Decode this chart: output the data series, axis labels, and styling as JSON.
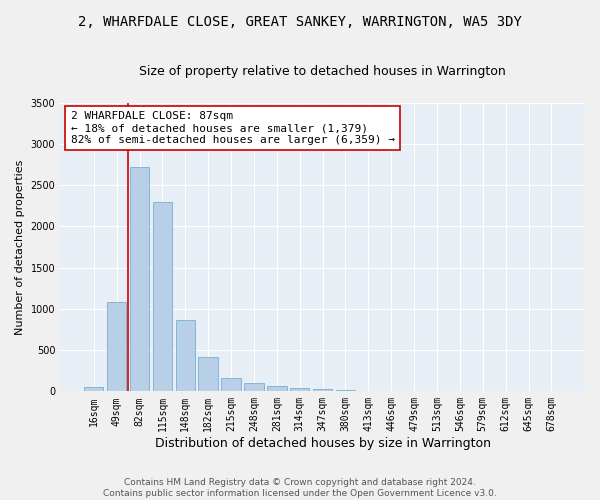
{
  "title": "2, WHARFDALE CLOSE, GREAT SANKEY, WARRINGTON, WA5 3DY",
  "subtitle": "Size of property relative to detached houses in Warrington",
  "xlabel": "Distribution of detached houses by size in Warrington",
  "ylabel": "Number of detached properties",
  "categories": [
    "16sqm",
    "49sqm",
    "82sqm",
    "115sqm",
    "148sqm",
    "182sqm",
    "215sqm",
    "248sqm",
    "281sqm",
    "314sqm",
    "347sqm",
    "380sqm",
    "413sqm",
    "446sqm",
    "479sqm",
    "513sqm",
    "546sqm",
    "579sqm",
    "612sqm",
    "645sqm",
    "678sqm"
  ],
  "values": [
    50,
    1080,
    2720,
    2300,
    870,
    420,
    165,
    100,
    65,
    45,
    30,
    20,
    10,
    5,
    0,
    0,
    0,
    0,
    0,
    0,
    0
  ],
  "bar_color": "#b8cfe8",
  "bar_edge_color": "#7aadd4",
  "vline_color": "#cc0000",
  "vline_index": 2,
  "annotation_text": "2 WHARFDALE CLOSE: 87sqm\n← 18% of detached houses are smaller (1,379)\n82% of semi-detached houses are larger (6,359) →",
  "annotation_box_facecolor": "#ffffff",
  "annotation_box_edgecolor": "#cc0000",
  "ylim": [
    0,
    3500
  ],
  "yticks": [
    0,
    500,
    1000,
    1500,
    2000,
    2500,
    3000,
    3500
  ],
  "bg_color": "#e8eef5",
  "grid_color": "#ffffff",
  "fig_bg_color": "#f0f0f0",
  "title_fontsize": 10,
  "subtitle_fontsize": 9,
  "xlabel_fontsize": 9,
  "ylabel_fontsize": 8,
  "tick_fontsize": 7,
  "annotation_fontsize": 8,
  "footer": "Contains HM Land Registry data © Crown copyright and database right 2024.\nContains public sector information licensed under the Open Government Licence v3.0.",
  "footer_fontsize": 6.5
}
